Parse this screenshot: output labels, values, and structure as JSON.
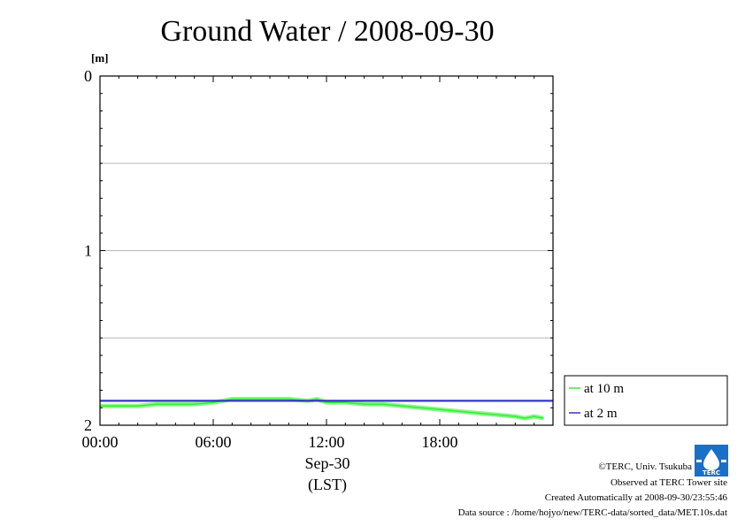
{
  "chart_data": {
    "type": "line",
    "title": "Ground Water / 2008-09-30",
    "ylabel": "[m]",
    "xlabel_date": "Sep-30",
    "xlabel_tz": "(LST)",
    "x_unit": "hours",
    "ylim": [
      0,
      2
    ],
    "y_inverted": true,
    "xlim": [
      0,
      24
    ],
    "x_ticks": [
      0,
      6,
      12,
      18
    ],
    "x_tick_labels": [
      "00:00",
      "06:00",
      "12:00",
      "18:00"
    ],
    "y_ticks": [
      0,
      1,
      2
    ],
    "y_tick_labels": [
      "0",
      "1",
      "2"
    ],
    "y_gridlines": [
      0.5,
      1,
      1.5
    ],
    "grid": true,
    "legend_position": "right-bottom outside",
    "series": [
      {
        "name": "at 10 m",
        "color": "#33ee33",
        "x": [
          0,
          1,
          2,
          3,
          4,
          5,
          6,
          6.5,
          7,
          8,
          9,
          10,
          11,
          11.5,
          12,
          13,
          14,
          15,
          16,
          17,
          18,
          19,
          20,
          21,
          22,
          22.5,
          23,
          23.5
        ],
        "values": [
          1.89,
          1.89,
          1.89,
          1.88,
          1.88,
          1.88,
          1.87,
          1.86,
          1.85,
          1.85,
          1.85,
          1.85,
          1.86,
          1.85,
          1.87,
          1.87,
          1.88,
          1.88,
          1.89,
          1.9,
          1.91,
          1.92,
          1.93,
          1.94,
          1.95,
          1.96,
          1.95,
          1.96
        ]
      },
      {
        "name": "at 2 m",
        "color": "#3333cc",
        "x": [
          0,
          24
        ],
        "values": [
          1.86,
          1.86
        ]
      }
    ]
  },
  "footer": {
    "copyright": "©TERC, Univ. Tsukuba",
    "observed": "Observed at TERC Tower site",
    "created": "Created Automatically at 2008-09-30/23:55:46",
    "source": "Data source : /home/hojyo/new/TERC-data/sorted_data/MET.10s.dat"
  },
  "logo": {
    "text": "TERC",
    "color": "#1a6fc9"
  }
}
